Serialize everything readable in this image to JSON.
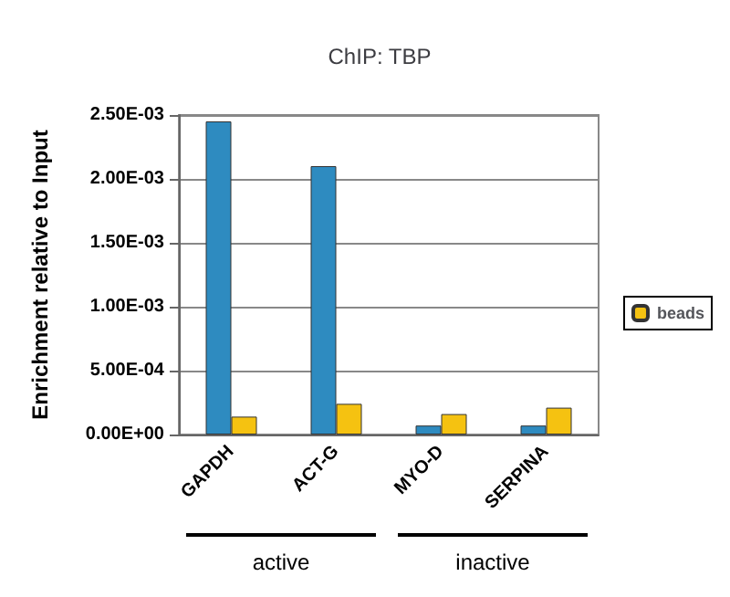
{
  "chart_data": {
    "type": "bar",
    "title": "ChIP: TBP",
    "ylabel": "Enrichment relative to Input",
    "categories": [
      "GAPDH",
      "ACT-G",
      "MYO-D",
      "SERPINA"
    ],
    "series": [
      {
        "color": "#2e8bc0",
        "values": [
          0.00245,
          0.0021,
          7e-05,
          7e-05
        ]
      },
      {
        "name": "beads",
        "color": "#f5c211",
        "values": [
          0.00014,
          0.00024,
          0.00016,
          0.00021
        ]
      }
    ],
    "ylim": [
      0,
      0.0025
    ],
    "yticks": [
      {
        "value": 0,
        "label": "0.00E+00"
      },
      {
        "value": 0.0005,
        "label": "5.00E-04"
      },
      {
        "value": 0.001,
        "label": "1.00E-03"
      },
      {
        "value": 0.0015,
        "label": "1.50E-03"
      },
      {
        "value": 0.002,
        "label": "2.00E-03"
      },
      {
        "value": 0.0025,
        "label": "2.50E-03"
      }
    ],
    "annotations": [
      "active",
      "inactive"
    ],
    "grid": "y",
    "legend": "right"
  }
}
